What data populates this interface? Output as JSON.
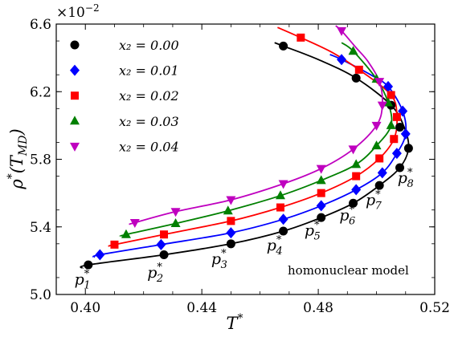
{
  "chart_data": {
    "type": "scatter",
    "xlabel_symbol": "T",
    "xlabel_sup": "*",
    "ylabel_main": "ρ",
    "ylabel_sup": "*",
    "ylabel_arg": "(T",
    "ylabel_sub": "MD",
    "ylabel_close": ")",
    "offset_base": "×10",
    "offset_exp": "−2",
    "annotation": "homonuclear model",
    "xlim": [
      0.39,
      0.52
    ],
    "ylim": [
      5.0,
      6.6
    ],
    "grid": false,
    "legend_position": "upper-left",
    "x_ticks": [
      {
        "v": 0.4,
        "label": "0.40"
      },
      {
        "v": 0.44,
        "label": "0.44"
      },
      {
        "v": 0.48,
        "label": "0.48"
      },
      {
        "v": 0.52,
        "label": "0.52"
      }
    ],
    "y_ticks": [
      {
        "v": 5.0,
        "label": "5.0"
      },
      {
        "v": 5.4,
        "label": "5.4"
      },
      {
        "v": 5.8,
        "label": "5.8"
      },
      {
        "v": 6.2,
        "label": "6.2"
      },
      {
        "v": 6.6,
        "label": "6.6"
      }
    ],
    "series": [
      {
        "name": "x2 = 0.00",
        "legend_label": "x₂ = 0.00",
        "color": "#000000",
        "marker": "circle",
        "points": [
          [
            0.401,
            5.175
          ],
          [
            0.427,
            5.235
          ],
          [
            0.45,
            5.3
          ],
          [
            0.468,
            5.375
          ],
          [
            0.481,
            5.455
          ],
          [
            0.492,
            5.54
          ],
          [
            0.501,
            5.645
          ],
          [
            0.508,
            5.75
          ],
          [
            0.511,
            5.865
          ],
          [
            0.508,
            5.99
          ],
          [
            0.505,
            6.12
          ],
          [
            0.493,
            6.28
          ],
          [
            0.468,
            6.47
          ]
        ],
        "curve": [
          [
            0.399,
            5.155
          ],
          [
            0.401,
            5.175
          ],
          [
            0.427,
            5.235
          ],
          [
            0.45,
            5.3
          ],
          [
            0.468,
            5.375
          ],
          [
            0.481,
            5.455
          ],
          [
            0.492,
            5.54
          ],
          [
            0.501,
            5.645
          ],
          [
            0.508,
            5.75
          ],
          [
            0.511,
            5.865
          ],
          [
            0.5095,
            5.99
          ],
          [
            0.505,
            6.12
          ],
          [
            0.493,
            6.28
          ],
          [
            0.48,
            6.39
          ],
          [
            0.468,
            6.47
          ],
          [
            0.465,
            6.49
          ]
        ]
      },
      {
        "name": "x2 = 0.01",
        "legend_label": "x₂ = 0.01",
        "color": "#0000ff",
        "marker": "diamond",
        "points": [
          [
            0.405,
            5.235
          ],
          [
            0.426,
            5.295
          ],
          [
            0.45,
            5.365
          ],
          [
            0.468,
            5.445
          ],
          [
            0.481,
            5.525
          ],
          [
            0.493,
            5.62
          ],
          [
            0.502,
            5.72
          ],
          [
            0.507,
            5.835
          ],
          [
            0.51,
            5.95
          ],
          [
            0.509,
            6.085
          ],
          [
            0.504,
            6.23
          ],
          [
            0.488,
            6.39
          ]
        ],
        "curve": [
          [
            0.403,
            5.22
          ],
          [
            0.405,
            5.235
          ],
          [
            0.426,
            5.295
          ],
          [
            0.45,
            5.365
          ],
          [
            0.468,
            5.445
          ],
          [
            0.481,
            5.525
          ],
          [
            0.493,
            5.62
          ],
          [
            0.502,
            5.72
          ],
          [
            0.507,
            5.835
          ],
          [
            0.51,
            5.95
          ],
          [
            0.509,
            6.085
          ],
          [
            0.504,
            6.23
          ],
          [
            0.498,
            6.3
          ],
          [
            0.488,
            6.39
          ],
          [
            0.484,
            6.42
          ]
        ]
      },
      {
        "name": "x2 = 0.02",
        "legend_label": "x₂ = 0.02",
        "color": "#ff0000",
        "marker": "square",
        "points": [
          [
            0.41,
            5.295
          ],
          [
            0.427,
            5.355
          ],
          [
            0.45,
            5.435
          ],
          [
            0.467,
            5.515
          ],
          [
            0.481,
            5.6
          ],
          [
            0.493,
            5.7
          ],
          [
            0.501,
            5.805
          ],
          [
            0.506,
            5.92
          ],
          [
            0.507,
            6.05
          ],
          [
            0.505,
            6.18
          ],
          [
            0.494,
            6.33
          ],
          [
            0.474,
            6.52
          ]
        ],
        "curve": [
          [
            0.408,
            5.285
          ],
          [
            0.41,
            5.295
          ],
          [
            0.427,
            5.355
          ],
          [
            0.45,
            5.435
          ],
          [
            0.467,
            5.515
          ],
          [
            0.481,
            5.6
          ],
          [
            0.493,
            5.7
          ],
          [
            0.501,
            5.805
          ],
          [
            0.506,
            5.92
          ],
          [
            0.507,
            6.05
          ],
          [
            0.505,
            6.18
          ],
          [
            0.494,
            6.33
          ],
          [
            0.485,
            6.43
          ],
          [
            0.474,
            6.52
          ],
          [
            0.466,
            6.58
          ]
        ]
      },
      {
        "name": "x2 = 0.03",
        "legend_label": "x₂ = 0.03",
        "color": "#008000",
        "marker": "triangle-up",
        "points": [
          [
            0.414,
            5.355
          ],
          [
            0.431,
            5.42
          ],
          [
            0.449,
            5.495
          ],
          [
            0.467,
            5.585
          ],
          [
            0.481,
            5.675
          ],
          [
            0.493,
            5.77
          ],
          [
            0.5,
            5.88
          ],
          [
            0.505,
            6.0
          ],
          [
            0.504,
            6.135
          ],
          [
            0.5,
            6.275
          ],
          [
            0.492,
            6.44
          ]
        ],
        "curve": [
          [
            0.412,
            5.345
          ],
          [
            0.414,
            5.355
          ],
          [
            0.431,
            5.42
          ],
          [
            0.449,
            5.495
          ],
          [
            0.467,
            5.585
          ],
          [
            0.481,
            5.675
          ],
          [
            0.493,
            5.77
          ],
          [
            0.5,
            5.88
          ],
          [
            0.505,
            6.0
          ],
          [
            0.504,
            6.135
          ],
          [
            0.5,
            6.275
          ],
          [
            0.492,
            6.44
          ],
          [
            0.488,
            6.49
          ]
        ]
      },
      {
        "name": "x2 = 0.04",
        "legend_label": "x₂ = 0.04",
        "color": "#bf00bf",
        "marker": "triangle-down",
        "points": [
          [
            0.417,
            5.425
          ],
          [
            0.431,
            5.49
          ],
          [
            0.45,
            5.56
          ],
          [
            0.468,
            5.655
          ],
          [
            0.481,
            5.745
          ],
          [
            0.492,
            5.86
          ],
          [
            0.5,
            6.0
          ],
          [
            0.502,
            6.12
          ],
          [
            0.501,
            6.26
          ],
          [
            0.488,
            6.56
          ]
        ],
        "curve": [
          [
            0.415,
            5.415
          ],
          [
            0.417,
            5.425
          ],
          [
            0.431,
            5.49
          ],
          [
            0.45,
            5.56
          ],
          [
            0.468,
            5.655
          ],
          [
            0.481,
            5.745
          ],
          [
            0.492,
            5.86
          ],
          [
            0.5,
            6.0
          ],
          [
            0.502,
            6.12
          ],
          [
            0.501,
            6.26
          ],
          [
            0.497,
            6.38
          ],
          [
            0.493,
            6.46
          ],
          [
            0.488,
            6.56
          ],
          [
            0.486,
            6.59
          ]
        ]
      }
    ],
    "point_labels": [
      {
        "base": "p",
        "sub": "1",
        "sup": "*",
        "x": 0.399,
        "y": 5.06
      },
      {
        "base": "p",
        "sub": "2",
        "sup": "*",
        "x": 0.424,
        "y": 5.1
      },
      {
        "base": "p",
        "sub": "3",
        "sup": "*",
        "x": 0.446,
        "y": 5.18
      },
      {
        "base": "p",
        "sub": "4",
        "sup": "*",
        "x": 0.465,
        "y": 5.26
      },
      {
        "base": "p",
        "sub": "5",
        "sup": "*",
        "x": 0.478,
        "y": 5.35
      },
      {
        "base": "p",
        "sub": "6",
        "sup": "*",
        "x": 0.49,
        "y": 5.44
      },
      {
        "base": "p",
        "sub": "7",
        "sup": "*",
        "x": 0.499,
        "y": 5.53
      },
      {
        "base": "p",
        "sub": "8",
        "sup": "*",
        "x": 0.51,
        "y": 5.66
      }
    ]
  }
}
